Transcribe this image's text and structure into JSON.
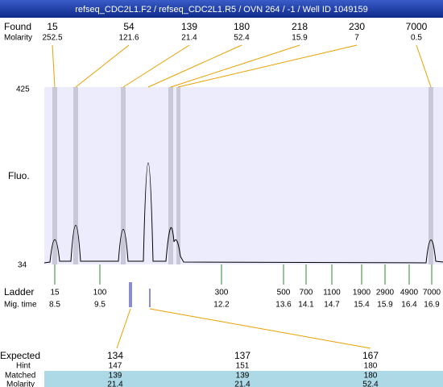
{
  "header": {
    "title": "refseq_CDC2L1.F2 / refseq_CDC2L1.R5 / OVN 264 / -1 / Well ID 1049159"
  },
  "found": {
    "label": "Found",
    "molarity_label": "Molarity",
    "peaks": [
      {
        "size": 15,
        "molarity": 252.5
      },
      {
        "size": 54,
        "molarity": 121.6
      },
      {
        "size": 139,
        "molarity": 21.4
      },
      {
        "size": 180,
        "molarity": 52.4
      },
      {
        "size": 218,
        "molarity": 15.9
      },
      {
        "size": 230,
        "molarity": 7
      },
      {
        "size": 7000,
        "molarity": 0.5
      }
    ]
  },
  "y_axis": {
    "label": "Fluo.",
    "max": 425,
    "min": 34
  },
  "ladder": {
    "label": "Ladder",
    "time_label": "Mig. time",
    "bands": [
      {
        "size": 15,
        "time": 8.5
      },
      {
        "size": 100,
        "time": 9.5
      },
      {
        "size": 300,
        "time": 12.2
      },
      {
        "size": 500,
        "time": 13.6
      },
      {
        "size": 700,
        "time": 14.1
      },
      {
        "size": 1100,
        "time": 14.7
      },
      {
        "size": 1900,
        "time": 15.4
      },
      {
        "size": 2900,
        "time": 15.9
      },
      {
        "size": 4900,
        "time": 16.4
      },
      {
        "size": 7000,
        "time": 16.9
      }
    ]
  },
  "expected": {
    "label": "Expected",
    "hint_label": "Hint",
    "matched_label": "Matched",
    "molarity_label": "Molarity",
    "columns": [
      {
        "expected": 134,
        "hint": 147,
        "matched": 139,
        "molarity": 21.4
      },
      {
        "expected": 137,
        "hint": 151,
        "matched": 139,
        "molarity": 21.4
      },
      {
        "expected": 167,
        "hint": 180,
        "matched": 180,
        "molarity": 52.4
      }
    ]
  }
}
